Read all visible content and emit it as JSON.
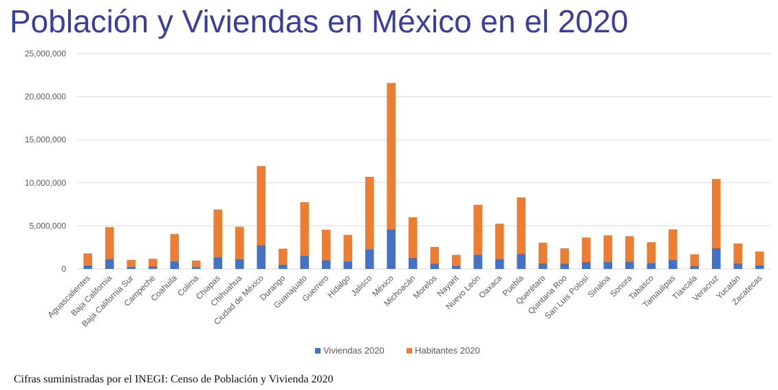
{
  "title": "Población y Viviendas en México en el 2020",
  "caption": "Cifras suministradas por el INEGI: Censo de Población y Vivienda 2020",
  "colors": {
    "title": "#3a3ea0",
    "viviendas": "#4472c4",
    "habitantes": "#ed7d31",
    "grid": "#d9d9d9",
    "axis_text": "#595959"
  },
  "chart_data": {
    "type": "bar",
    "stacked": true,
    "title": "",
    "xlabel": "",
    "ylabel": "",
    "ylim": [
      0,
      25000000
    ],
    "y_ticks": [
      0,
      5000000,
      10000000,
      15000000,
      20000000,
      25000000
    ],
    "y_tick_labels": [
      "0",
      "5,000,000",
      "10,000,000",
      "15,000,000",
      "20,000,000",
      "25,000,000"
    ],
    "grid": true,
    "legend_position": "bottom",
    "categories": [
      "Aguascalientes",
      "Baja California",
      "Baja California Sur",
      "Campeche",
      "Coahuila",
      "Colima",
      "Chiapas",
      "Chihuahua",
      "Ciudad de México",
      "Durango",
      "Guanajuato",
      "Guerrero",
      "Hidalgo",
      "Jalisco",
      "México",
      "Michoacán",
      "Morelos",
      "Nayarit",
      "Nuevo León",
      "Oaxaca",
      "Puebla",
      "Querétaro",
      "Quintana Roo",
      "San Luis Potosí",
      "Sinaloa",
      "Sonora",
      "Tabasco",
      "Tamaulipas",
      "Tlaxcala",
      "Veracruz",
      "Yucatán",
      "Zacatecas"
    ],
    "series": [
      {
        "name": "Viviendas 2020",
        "values": [
          400000,
          1150000,
          250000,
          280000,
          900000,
          230000,
          1350000,
          1150000,
          2750000,
          500000,
          1550000,
          1000000,
          900000,
          2300000,
          4600000,
          1300000,
          600000,
          380000,
          1650000,
          1150000,
          1750000,
          650000,
          600000,
          800000,
          850000,
          850000,
          700000,
          1050000,
          350000,
          2400000,
          650000,
          430000
        ]
      },
      {
        "name": "Habitantes 2020",
        "values": [
          1400000,
          3700000,
          800000,
          900000,
          3150000,
          750000,
          5550000,
          3750000,
          9200000,
          1850000,
          6200000,
          3550000,
          3050000,
          8400000,
          17000000,
          4700000,
          1950000,
          1250000,
          5800000,
          4100000,
          6550000,
          2400000,
          1800000,
          2850000,
          3050000,
          2950000,
          2400000,
          3550000,
          1350000,
          8050000,
          2300000,
          1600000
        ]
      }
    ]
  }
}
